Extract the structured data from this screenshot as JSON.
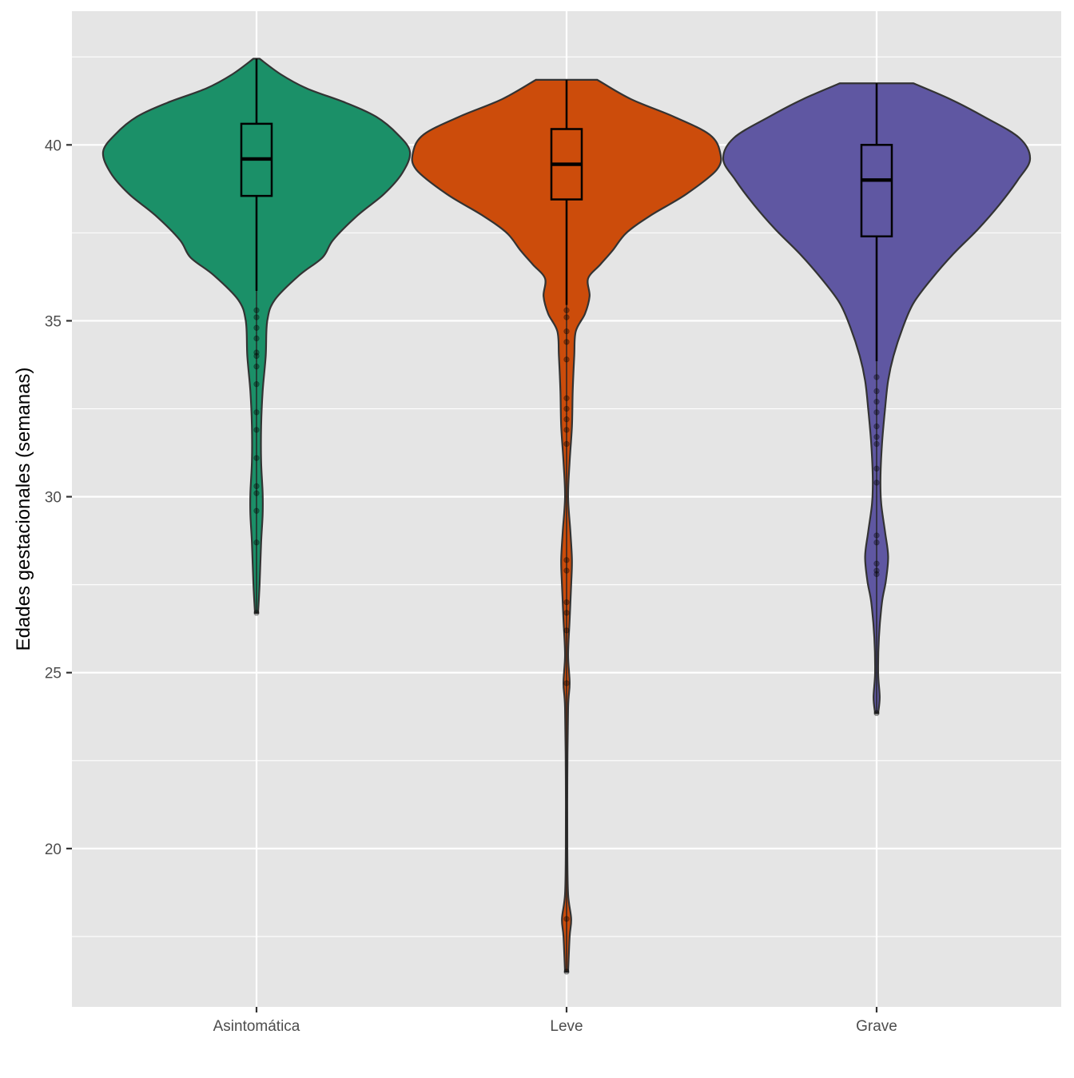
{
  "chart_data": {
    "type": "violin",
    "title": "",
    "xlabel": "",
    "ylabel": "Edades gestacionales (semanas)",
    "ylim": [
      15.5,
      43.8
    ],
    "yticks": [
      20,
      25,
      30,
      35,
      40
    ],
    "y_minor_ticks": [
      17.5,
      22.5,
      27.5,
      32.5,
      37.5,
      42.5
    ],
    "grid": true,
    "legend": "none",
    "background": "#e5e5e5",
    "gridline_color": "#ffffff",
    "categories": [
      "Asintomática",
      "Leve",
      "Grave"
    ],
    "series": [
      {
        "category": "Asintomática",
        "color": "#1b9068",
        "min": 26.7,
        "q1": 38.55,
        "median": 39.6,
        "q3": 40.6,
        "max": 42.45,
        "whisker_low": 35.85,
        "whisker_high": 42.45,
        "outliers": [
          35.3,
          35.1,
          34.8,
          34.5,
          34.1,
          34.0,
          33.7,
          33.2,
          32.4,
          31.9,
          31.1,
          30.3,
          30.1,
          29.6,
          28.7,
          26.7
        ],
        "density": [
          [
            26.7,
            0.01
          ],
          [
            27.5,
            0.02
          ],
          [
            28.7,
            0.03
          ],
          [
            29.5,
            0.04
          ],
          [
            30.1,
            0.04
          ],
          [
            31.0,
            0.03
          ],
          [
            32.0,
            0.03
          ],
          [
            33.0,
            0.04
          ],
          [
            34.0,
            0.06
          ],
          [
            35.0,
            0.07
          ],
          [
            35.6,
            0.12
          ],
          [
            36.3,
            0.28
          ],
          [
            36.8,
            0.43
          ],
          [
            37.3,
            0.5
          ],
          [
            38.0,
            0.66
          ],
          [
            38.6,
            0.83
          ],
          [
            39.2,
            0.95
          ],
          [
            39.8,
            1.0
          ],
          [
            40.3,
            0.92
          ],
          [
            40.8,
            0.78
          ],
          [
            41.2,
            0.58
          ],
          [
            41.6,
            0.33
          ],
          [
            42.0,
            0.16
          ],
          [
            42.45,
            0.02
          ]
        ]
      },
      {
        "category": "Leve",
        "color": "#cc4c0b",
        "min": 16.5,
        "q1": 38.45,
        "median": 39.45,
        "q3": 40.45,
        "max": 41.85,
        "whisker_low": 35.45,
        "whisker_high": 41.85,
        "outliers": [
          35.3,
          35.1,
          34.7,
          34.4,
          33.9,
          32.8,
          32.5,
          32.2,
          31.9,
          31.5,
          28.2,
          27.9,
          27.0,
          26.7,
          26.2,
          24.7,
          18.0,
          16.5
        ],
        "density": [
          [
            16.5,
            0.01
          ],
          [
            17.5,
            0.02
          ],
          [
            18.0,
            0.03
          ],
          [
            18.7,
            0.01
          ],
          [
            20.0,
            0.005
          ],
          [
            22.0,
            0.005
          ],
          [
            24.0,
            0.01
          ],
          [
            24.7,
            0.02
          ],
          [
            25.5,
            0.01
          ],
          [
            26.5,
            0.02
          ],
          [
            27.5,
            0.03
          ],
          [
            28.2,
            0.035
          ],
          [
            29.0,
            0.025
          ],
          [
            30.0,
            0.01
          ],
          [
            31.0,
            0.02
          ],
          [
            32.0,
            0.035
          ],
          [
            33.0,
            0.04
          ],
          [
            34.0,
            0.05
          ],
          [
            34.7,
            0.06
          ],
          [
            35.2,
            0.12
          ],
          [
            35.7,
            0.15
          ],
          [
            36.2,
            0.14
          ],
          [
            36.6,
            0.22
          ],
          [
            37.0,
            0.3
          ],
          [
            37.5,
            0.39
          ],
          [
            38.0,
            0.55
          ],
          [
            38.6,
            0.78
          ],
          [
            39.3,
            0.98
          ],
          [
            39.8,
            1.0
          ],
          [
            40.3,
            0.93
          ],
          [
            40.8,
            0.7
          ],
          [
            41.3,
            0.42
          ],
          [
            41.85,
            0.2
          ]
        ]
      },
      {
        "category": "Grave",
        "color": "#5f57a2",
        "min": 23.85,
        "q1": 37.4,
        "median": 39.0,
        "q3": 40.0,
        "max": 41.75,
        "whisker_low": 33.85,
        "whisker_high": 41.75,
        "outliers": [
          33.4,
          33.0,
          32.7,
          32.4,
          32.0,
          31.7,
          31.5,
          30.8,
          30.4,
          28.9,
          28.7,
          28.1,
          27.9,
          27.8,
          23.85
        ],
        "density": [
          [
            23.85,
            0.01
          ],
          [
            24.3,
            0.02
          ],
          [
            25.0,
            0.01
          ],
          [
            26.0,
            0.015
          ],
          [
            27.0,
            0.035
          ],
          [
            27.6,
            0.06
          ],
          [
            28.3,
            0.075
          ],
          [
            29.0,
            0.055
          ],
          [
            29.8,
            0.03
          ],
          [
            30.5,
            0.025
          ],
          [
            31.5,
            0.035
          ],
          [
            32.5,
            0.055
          ],
          [
            33.3,
            0.075
          ],
          [
            34.0,
            0.11
          ],
          [
            34.8,
            0.17
          ],
          [
            35.5,
            0.24
          ],
          [
            36.2,
            0.36
          ],
          [
            36.9,
            0.5
          ],
          [
            37.6,
            0.66
          ],
          [
            38.3,
            0.8
          ],
          [
            39.0,
            0.92
          ],
          [
            39.6,
            1.0
          ],
          [
            40.2,
            0.93
          ],
          [
            40.8,
            0.7
          ],
          [
            41.3,
            0.48
          ],
          [
            41.75,
            0.24
          ]
        ]
      }
    ]
  }
}
